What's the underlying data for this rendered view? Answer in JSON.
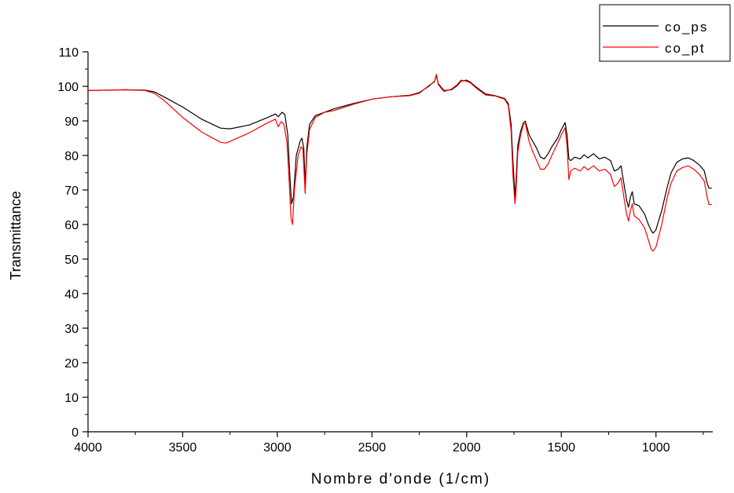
{
  "chart_data": {
    "type": "line",
    "xlabel": "Nombre d'onde (1/cm)",
    "ylabel": "Transmittance",
    "xlim": [
      4000,
      700
    ],
    "ylim": [
      0,
      110
    ],
    "x_reversed": true,
    "x_ticks": [
      4000,
      3500,
      3000,
      2500,
      2000,
      1500,
      1000
    ],
    "x_tick_labels": [
      "4000",
      "3500",
      "3000",
      "2500",
      "2000",
      "1500",
      "1000"
    ],
    "y_ticks": [
      0,
      10,
      20,
      30,
      40,
      50,
      60,
      70,
      80,
      90,
      100,
      110
    ],
    "y_tick_labels": [
      "0",
      "10",
      "20",
      "30",
      "40",
      "50",
      "60",
      "70",
      "80",
      "90",
      "100",
      "110"
    ],
    "grid": false,
    "legend_position": "top-right",
    "series": [
      {
        "name": "co_ps",
        "color": "#000000",
        "points": [
          [
            4000,
            98.8
          ],
          [
            3900,
            98.9
          ],
          [
            3800,
            99.0
          ],
          [
            3700,
            98.9
          ],
          [
            3650,
            98.4
          ],
          [
            3600,
            97.0
          ],
          [
            3500,
            94.0
          ],
          [
            3400,
            90.5
          ],
          [
            3300,
            87.9
          ],
          [
            3250,
            87.7
          ],
          [
            3150,
            88.8
          ],
          [
            3050,
            91.0
          ],
          [
            3010,
            92.0
          ],
          [
            2995,
            91.2
          ],
          [
            2975,
            92.5
          ],
          [
            2960,
            91.8
          ],
          [
            2945,
            86.0
          ],
          [
            2935,
            75.0
          ],
          [
            2925,
            66.0
          ],
          [
            2915,
            68.0
          ],
          [
            2900,
            80.0
          ],
          [
            2880,
            84.0
          ],
          [
            2870,
            85.0
          ],
          [
            2860,
            82.0
          ],
          [
            2853,
            71.0
          ],
          [
            2845,
            82.0
          ],
          [
            2830,
            89.0
          ],
          [
            2800,
            91.5
          ],
          [
            2750,
            92.5
          ],
          [
            2700,
            93.5
          ],
          [
            2600,
            95.0
          ],
          [
            2500,
            96.3
          ],
          [
            2400,
            97.0
          ],
          [
            2300,
            97.4
          ],
          [
            2250,
            98.2
          ],
          [
            2200,
            100.0
          ],
          [
            2170,
            101.5
          ],
          [
            2160,
            103.0
          ],
          [
            2150,
            100.8
          ],
          [
            2120,
            98.8
          ],
          [
            2080,
            99.0
          ],
          [
            2050,
            100.2
          ],
          [
            2030,
            101.5
          ],
          [
            2000,
            101.8
          ],
          [
            1980,
            101.2
          ],
          [
            1950,
            99.8
          ],
          [
            1900,
            97.8
          ],
          [
            1850,
            97.3
          ],
          [
            1800,
            96.5
          ],
          [
            1780,
            95.0
          ],
          [
            1765,
            89.0
          ],
          [
            1755,
            78.0
          ],
          [
            1745,
            68.0
          ],
          [
            1740,
            72.0
          ],
          [
            1730,
            83.0
          ],
          [
            1715,
            87.0
          ],
          [
            1700,
            89.5
          ],
          [
            1690,
            89.9
          ],
          [
            1670,
            86.0
          ],
          [
            1650,
            84.0
          ],
          [
            1630,
            82.0
          ],
          [
            1610,
            79.5
          ],
          [
            1590,
            79.0
          ],
          [
            1570,
            80.5
          ],
          [
            1550,
            82.5
          ],
          [
            1520,
            85.0
          ],
          [
            1500,
            87.5
          ],
          [
            1480,
            89.5
          ],
          [
            1470,
            86.0
          ],
          [
            1460,
            79.0
          ],
          [
            1450,
            78.5
          ],
          [
            1430,
            79.5
          ],
          [
            1400,
            79.0
          ],
          [
            1380,
            80.2
          ],
          [
            1360,
            79.3
          ],
          [
            1330,
            80.5
          ],
          [
            1300,
            79.0
          ],
          [
            1270,
            79.5
          ],
          [
            1240,
            78.5
          ],
          [
            1220,
            75.5
          ],
          [
            1200,
            76.0
          ],
          [
            1185,
            77.0
          ],
          [
            1170,
            72.0
          ],
          [
            1155,
            67.0
          ],
          [
            1145,
            65.0
          ],
          [
            1135,
            68.0
          ],
          [
            1125,
            69.5
          ],
          [
            1115,
            66.0
          ],
          [
            1090,
            65.5
          ],
          [
            1060,
            63.0
          ],
          [
            1040,
            60.0
          ],
          [
            1025,
            58.2
          ],
          [
            1015,
            57.5
          ],
          [
            1000,
            58.5
          ],
          [
            970,
            64.0
          ],
          [
            940,
            71.0
          ],
          [
            920,
            75.0
          ],
          [
            890,
            78.0
          ],
          [
            860,
            79.0
          ],
          [
            830,
            79.3
          ],
          [
            800,
            78.5
          ],
          [
            770,
            77.2
          ],
          [
            745,
            75.5
          ],
          [
            730,
            72.0
          ],
          [
            720,
            70.5
          ],
          [
            705,
            70.5
          ]
        ]
      },
      {
        "name": "co_pt",
        "color": "#ff0000",
        "points": [
          [
            4000,
            98.8
          ],
          [
            3900,
            98.9
          ],
          [
            3800,
            99.0
          ],
          [
            3700,
            98.8
          ],
          [
            3650,
            98.0
          ],
          [
            3600,
            96.0
          ],
          [
            3500,
            91.0
          ],
          [
            3400,
            86.8
          ],
          [
            3300,
            83.8
          ],
          [
            3270,
            83.6
          ],
          [
            3150,
            86.5
          ],
          [
            3050,
            89.5
          ],
          [
            3010,
            90.5
          ],
          [
            2995,
            88.3
          ],
          [
            2980,
            89.8
          ],
          [
            2965,
            89.0
          ],
          [
            2950,
            84.0
          ],
          [
            2940,
            75.0
          ],
          [
            2928,
            62.0
          ],
          [
            2920,
            60.0
          ],
          [
            2910,
            70.0
          ],
          [
            2890,
            80.0
          ],
          [
            2875,
            82.5
          ],
          [
            2865,
            82.0
          ],
          [
            2853,
            69.0
          ],
          [
            2845,
            80.0
          ],
          [
            2830,
            87.5
          ],
          [
            2800,
            91.0
          ],
          [
            2750,
            92.5
          ],
          [
            2700,
            93.0
          ],
          [
            2600,
            94.8
          ],
          [
            2500,
            96.3
          ],
          [
            2400,
            97.0
          ],
          [
            2300,
            97.3
          ],
          [
            2250,
            98.0
          ],
          [
            2200,
            100.2
          ],
          [
            2170,
            101.3
          ],
          [
            2160,
            103.5
          ],
          [
            2150,
            100.5
          ],
          [
            2120,
            98.5
          ],
          [
            2080,
            99.2
          ],
          [
            2050,
            100.5
          ],
          [
            2030,
            101.8
          ],
          [
            2000,
            101.5
          ],
          [
            1980,
            101.0
          ],
          [
            1950,
            99.5
          ],
          [
            1900,
            97.5
          ],
          [
            1850,
            97.2
          ],
          [
            1800,
            96.3
          ],
          [
            1780,
            94.5
          ],
          [
            1765,
            87.0
          ],
          [
            1755,
            74.0
          ],
          [
            1745,
            66.0
          ],
          [
            1740,
            69.0
          ],
          [
            1730,
            81.0
          ],
          [
            1715,
            86.0
          ],
          [
            1700,
            89.0
          ],
          [
            1690,
            89.3
          ],
          [
            1670,
            84.0
          ],
          [
            1650,
            81.0
          ],
          [
            1630,
            78.5
          ],
          [
            1610,
            76.0
          ],
          [
            1590,
            76.0
          ],
          [
            1570,
            77.5
          ],
          [
            1550,
            80.0
          ],
          [
            1520,
            83.5
          ],
          [
            1500,
            86.0
          ],
          [
            1480,
            88.0
          ],
          [
            1470,
            83.0
          ],
          [
            1460,
            73.0
          ],
          [
            1450,
            75.5
          ],
          [
            1430,
            76.3
          ],
          [
            1400,
            75.5
          ],
          [
            1380,
            76.8
          ],
          [
            1360,
            75.8
          ],
          [
            1330,
            77.0
          ],
          [
            1300,
            75.5
          ],
          [
            1270,
            76.0
          ],
          [
            1240,
            74.5
          ],
          [
            1220,
            71.0
          ],
          [
            1200,
            72.0
          ],
          [
            1185,
            73.5
          ],
          [
            1170,
            68.0
          ],
          [
            1155,
            63.0
          ],
          [
            1145,
            61.0
          ],
          [
            1135,
            64.0
          ],
          [
            1125,
            66.0
          ],
          [
            1115,
            62.5
          ],
          [
            1090,
            61.5
          ],
          [
            1060,
            59.0
          ],
          [
            1040,
            55.5
          ],
          [
            1025,
            52.8
          ],
          [
            1015,
            52.3
          ],
          [
            1000,
            53.5
          ],
          [
            970,
            60.0
          ],
          [
            940,
            68.0
          ],
          [
            920,
            72.0
          ],
          [
            890,
            75.5
          ],
          [
            860,
            76.5
          ],
          [
            830,
            77.0
          ],
          [
            800,
            76.0
          ],
          [
            770,
            74.5
          ],
          [
            745,
            72.5
          ],
          [
            730,
            68.0
          ],
          [
            720,
            65.8
          ],
          [
            705,
            65.8
          ]
        ]
      }
    ]
  }
}
